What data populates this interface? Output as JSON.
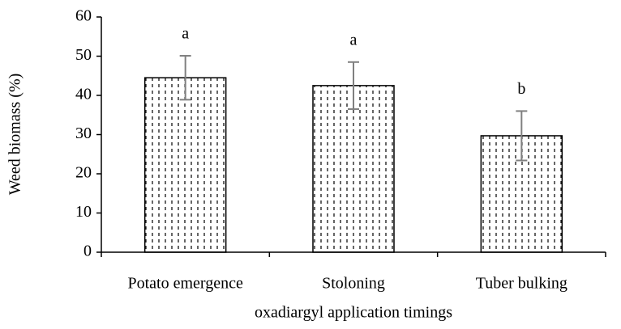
{
  "chart_data": {
    "type": "bar",
    "categories": [
      "Potato emergence",
      "Stoloning",
      "Tuber bulking"
    ],
    "values": [
      44.5,
      42.5,
      29.7
    ],
    "errors": [
      5.6,
      6,
      6.3
    ],
    "annotations": [
      "a",
      "a",
      "b"
    ],
    "y_label": "Weed biomass (%)",
    "x_label": "oxadiargyl application timings",
    "ylim": [
      0,
      60
    ],
    "yticks": [
      0,
      10,
      20,
      30,
      40,
      50,
      60
    ],
    "color": "#000000",
    "error_color": "#808080"
  }
}
